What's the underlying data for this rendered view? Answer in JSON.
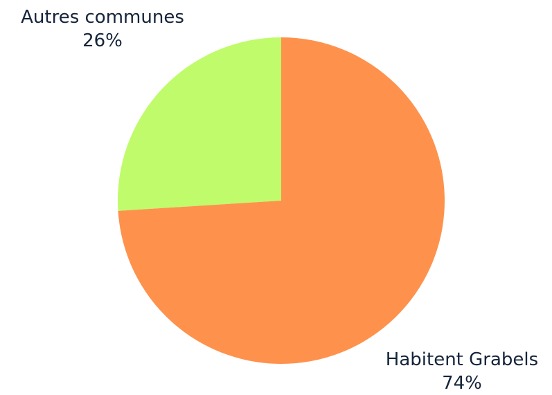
{
  "chart_data": {
    "type": "pie",
    "title": "",
    "slices": [
      {
        "label": "Autres communes",
        "value": 26,
        "value_label": "26%",
        "color": "#c0fb6b"
      },
      {
        "label": "Habitent Grabels",
        "value": 74,
        "value_label": "74%",
        "color": "#fe924d"
      }
    ],
    "start_angle_deg": 0,
    "direction": "counterclockwise",
    "legend": "none"
  }
}
